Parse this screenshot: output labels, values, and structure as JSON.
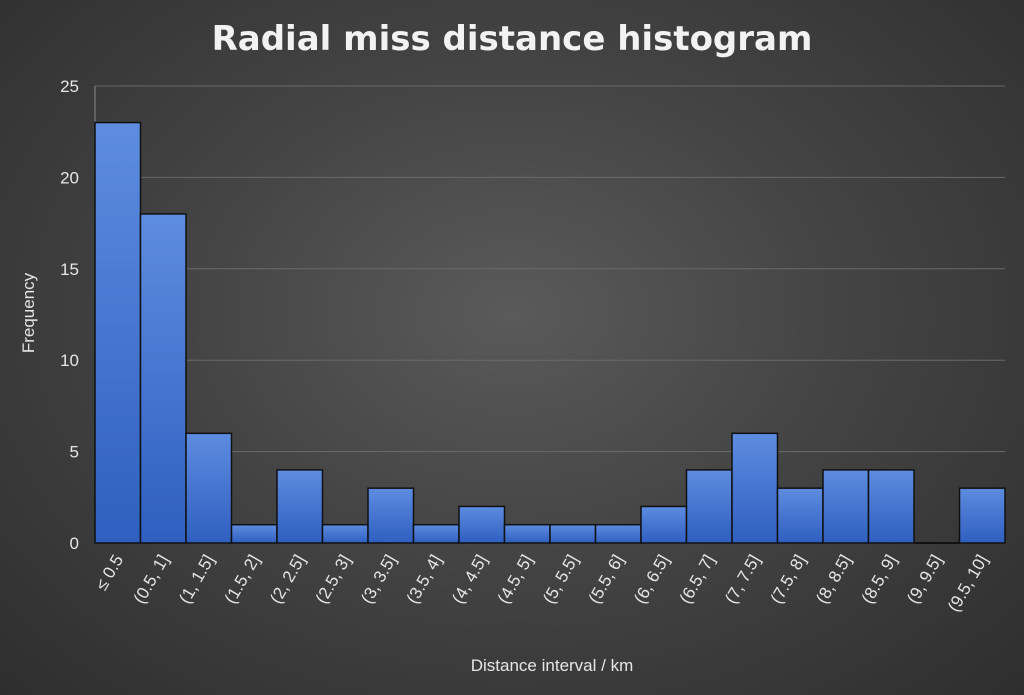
{
  "chart_data": {
    "type": "bar",
    "title": "Radial miss distance histogram",
    "xlabel": "Distance interval / km",
    "ylabel": "Frequency",
    "categories": [
      "≤ 0.5",
      "(0.5, 1]",
      "(1, 1.5]",
      "(1.5, 2]",
      "(2, 2.5]",
      "(2.5, 3]",
      "(3, 3.5]",
      "(3.5, 4]",
      "(4, 4.5]",
      "(4.5, 5]",
      "(5, 5.5]",
      "(5.5, 6]",
      "(6, 6.5]",
      "(6.5, 7]",
      "(7, 7.5]",
      "(7.5, 8]",
      "(8, 8.5]",
      "(8.5, 9]",
      "(9, 9.5]",
      "(9.5, 10]"
    ],
    "values": [
      23,
      18,
      6,
      1,
      4,
      1,
      3,
      1,
      2,
      1,
      1,
      1,
      2,
      4,
      6,
      3,
      4,
      4,
      0,
      3
    ],
    "ylim": [
      0,
      25
    ],
    "yticks": [
      0,
      5,
      10,
      15,
      20,
      25
    ],
    "grid": true,
    "bar_color": "#3f6fcf",
    "background_color": "#444444"
  }
}
